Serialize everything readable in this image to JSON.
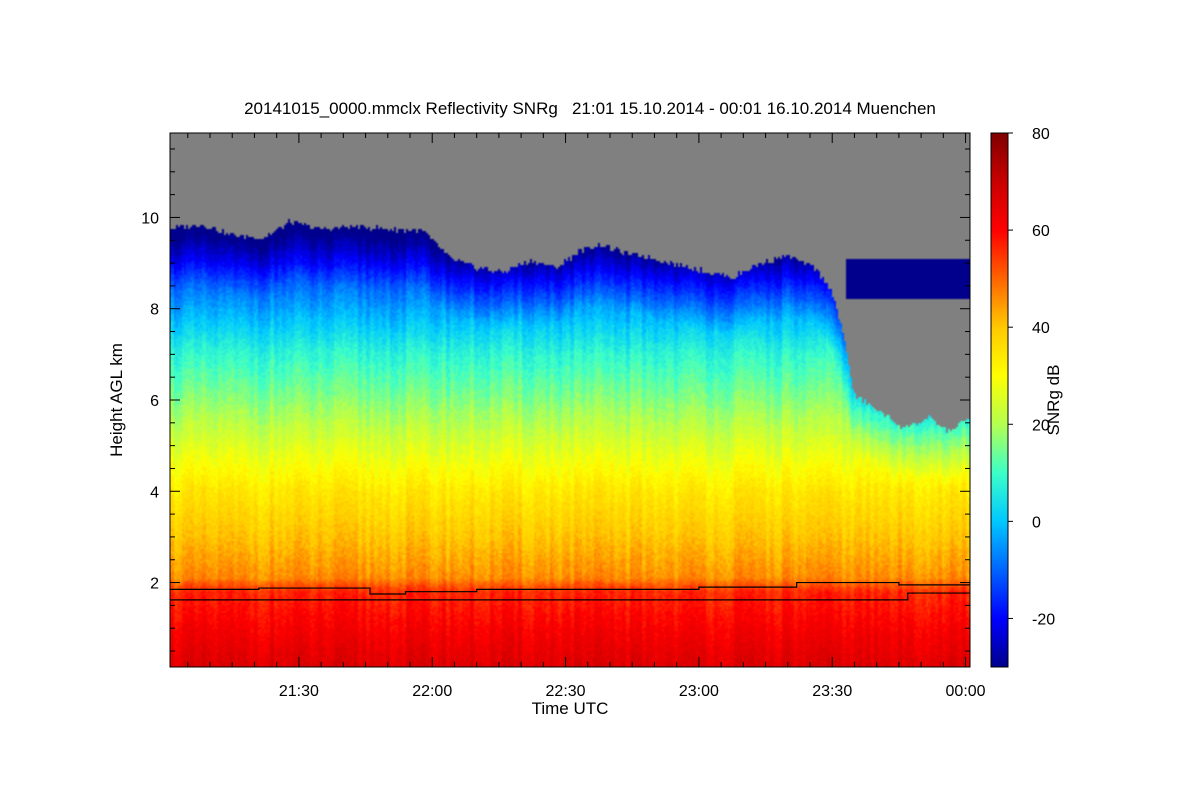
{
  "chart_data": {
    "type": "heatmap",
    "title": "20141015_0000.mmclx Reflectivity SNRg   21:01 15.10.2014 - 00:01 16.10.2014 Muenchen",
    "xlabel": "Time UTC",
    "ylabel": "Height AGL km",
    "colorbar_label": "SNRg dB",
    "x_range_minutes": [
      1261,
      1441
    ],
    "y_range_km": [
      0.15,
      11.85
    ],
    "x_ticks": [
      {
        "minute": 1290,
        "label": "21:30"
      },
      {
        "minute": 1320,
        "label": "22:00"
      },
      {
        "minute": 1350,
        "label": "22:30"
      },
      {
        "minute": 1380,
        "label": "23:00"
      },
      {
        "minute": 1410,
        "label": "23:30"
      },
      {
        "minute": 1440,
        "label": "00:00"
      }
    ],
    "y_ticks": [
      {
        "km": 2,
        "label": "2"
      },
      {
        "km": 4,
        "label": "4"
      },
      {
        "km": 6,
        "label": "6"
      },
      {
        "km": 8,
        "label": "8"
      },
      {
        "km": 10,
        "label": "10"
      }
    ],
    "colorbar_range_db": [
      -30,
      80
    ],
    "colorbar_ticks": [
      {
        "db": -20,
        "label": "-20"
      },
      {
        "db": 0,
        "label": "0"
      },
      {
        "db": 20,
        "label": "20"
      },
      {
        "db": 40,
        "label": "40"
      },
      {
        "db": 60,
        "label": "60"
      },
      {
        "db": 80,
        "label": "80"
      }
    ],
    "no_signal_color": "#808080",
    "colormap": [
      "#00008c",
      "#0000ff",
      "#0064ff",
      "#00c8ff",
      "#3cffc8",
      "#b4ff50",
      "#ffff00",
      "#ffc800",
      "#ff6400",
      "#ff0000",
      "#c80000",
      "#800000"
    ],
    "cloud_top_km": [
      {
        "minute": 1261,
        "km": 9.75
      },
      {
        "minute": 1268,
        "km": 9.85
      },
      {
        "minute": 1275,
        "km": 9.6
      },
      {
        "minute": 1282,
        "km": 9.55
      },
      {
        "minute": 1288,
        "km": 9.9
      },
      {
        "minute": 1295,
        "km": 9.75
      },
      {
        "minute": 1302,
        "km": 9.8
      },
      {
        "minute": 1310,
        "km": 9.75
      },
      {
        "minute": 1318,
        "km": 9.7
      },
      {
        "minute": 1324,
        "km": 9.1
      },
      {
        "minute": 1330,
        "km": 8.9
      },
      {
        "minute": 1336,
        "km": 8.8
      },
      {
        "minute": 1342,
        "km": 9.05
      },
      {
        "minute": 1348,
        "km": 8.9
      },
      {
        "minute": 1353,
        "km": 9.25
      },
      {
        "minute": 1358,
        "km": 9.4
      },
      {
        "minute": 1364,
        "km": 9.2
      },
      {
        "minute": 1370,
        "km": 9.1
      },
      {
        "minute": 1376,
        "km": 8.95
      },
      {
        "minute": 1382,
        "km": 8.8
      },
      {
        "minute": 1388,
        "km": 8.7
      },
      {
        "minute": 1394,
        "km": 9.0
      },
      {
        "minute": 1400,
        "km": 9.15
      },
      {
        "minute": 1406,
        "km": 8.9
      },
      {
        "minute": 1410,
        "km": 8.4
      },
      {
        "minute": 1413,
        "km": 7.2
      },
      {
        "minute": 1415,
        "km": 6.1
      },
      {
        "minute": 1420,
        "km": 5.8
      },
      {
        "minute": 1426,
        "km": 5.4
      },
      {
        "minute": 1432,
        "km": 5.6
      },
      {
        "minute": 1436,
        "km": 5.3
      },
      {
        "minute": 1441,
        "km": 5.6
      }
    ],
    "isolated_cloud": {
      "minute_start": 1413,
      "minute_end": 1441,
      "bottom_km": 8.2,
      "top_km": 9.1
    },
    "snr_profile_db": [
      {
        "km": 0.15,
        "db": 66
      },
      {
        "km": 1.0,
        "db": 61
      },
      {
        "km": 1.8,
        "db": 56
      },
      {
        "km": 2.1,
        "db": 46
      },
      {
        "km": 3.0,
        "db": 40
      },
      {
        "km": 4.0,
        "db": 34
      },
      {
        "km": 5.0,
        "db": 25
      },
      {
        "km": 6.0,
        "db": 16
      },
      {
        "km": 7.0,
        "db": 8
      },
      {
        "km": 8.0,
        "db": -4
      },
      {
        "km": 9.0,
        "db": -16
      },
      {
        "km": 10.0,
        "db": -24
      }
    ],
    "series": [
      {
        "name": "upper-black-line",
        "points": [
          {
            "minute": 1261,
            "km": 1.85
          },
          {
            "minute": 1281,
            "km": 1.88
          },
          {
            "minute": 1300,
            "km": 1.88
          },
          {
            "minute": 1306,
            "km": 1.75
          },
          {
            "minute": 1314,
            "km": 1.8
          },
          {
            "minute": 1330,
            "km": 1.85
          },
          {
            "minute": 1365,
            "km": 1.85
          },
          {
            "minute": 1380,
            "km": 1.9
          },
          {
            "minute": 1401,
            "km": 1.9
          },
          {
            "minute": 1402,
            "km": 2.0
          },
          {
            "minute": 1425,
            "km": 1.95
          },
          {
            "minute": 1441,
            "km": 2.02
          }
        ]
      },
      {
        "name": "lower-black-line",
        "points": [
          {
            "minute": 1261,
            "km": 1.62
          },
          {
            "minute": 1426,
            "km": 1.62
          },
          {
            "minute": 1427,
            "km": 1.77
          },
          {
            "minute": 1441,
            "km": 1.77
          }
        ]
      }
    ]
  }
}
